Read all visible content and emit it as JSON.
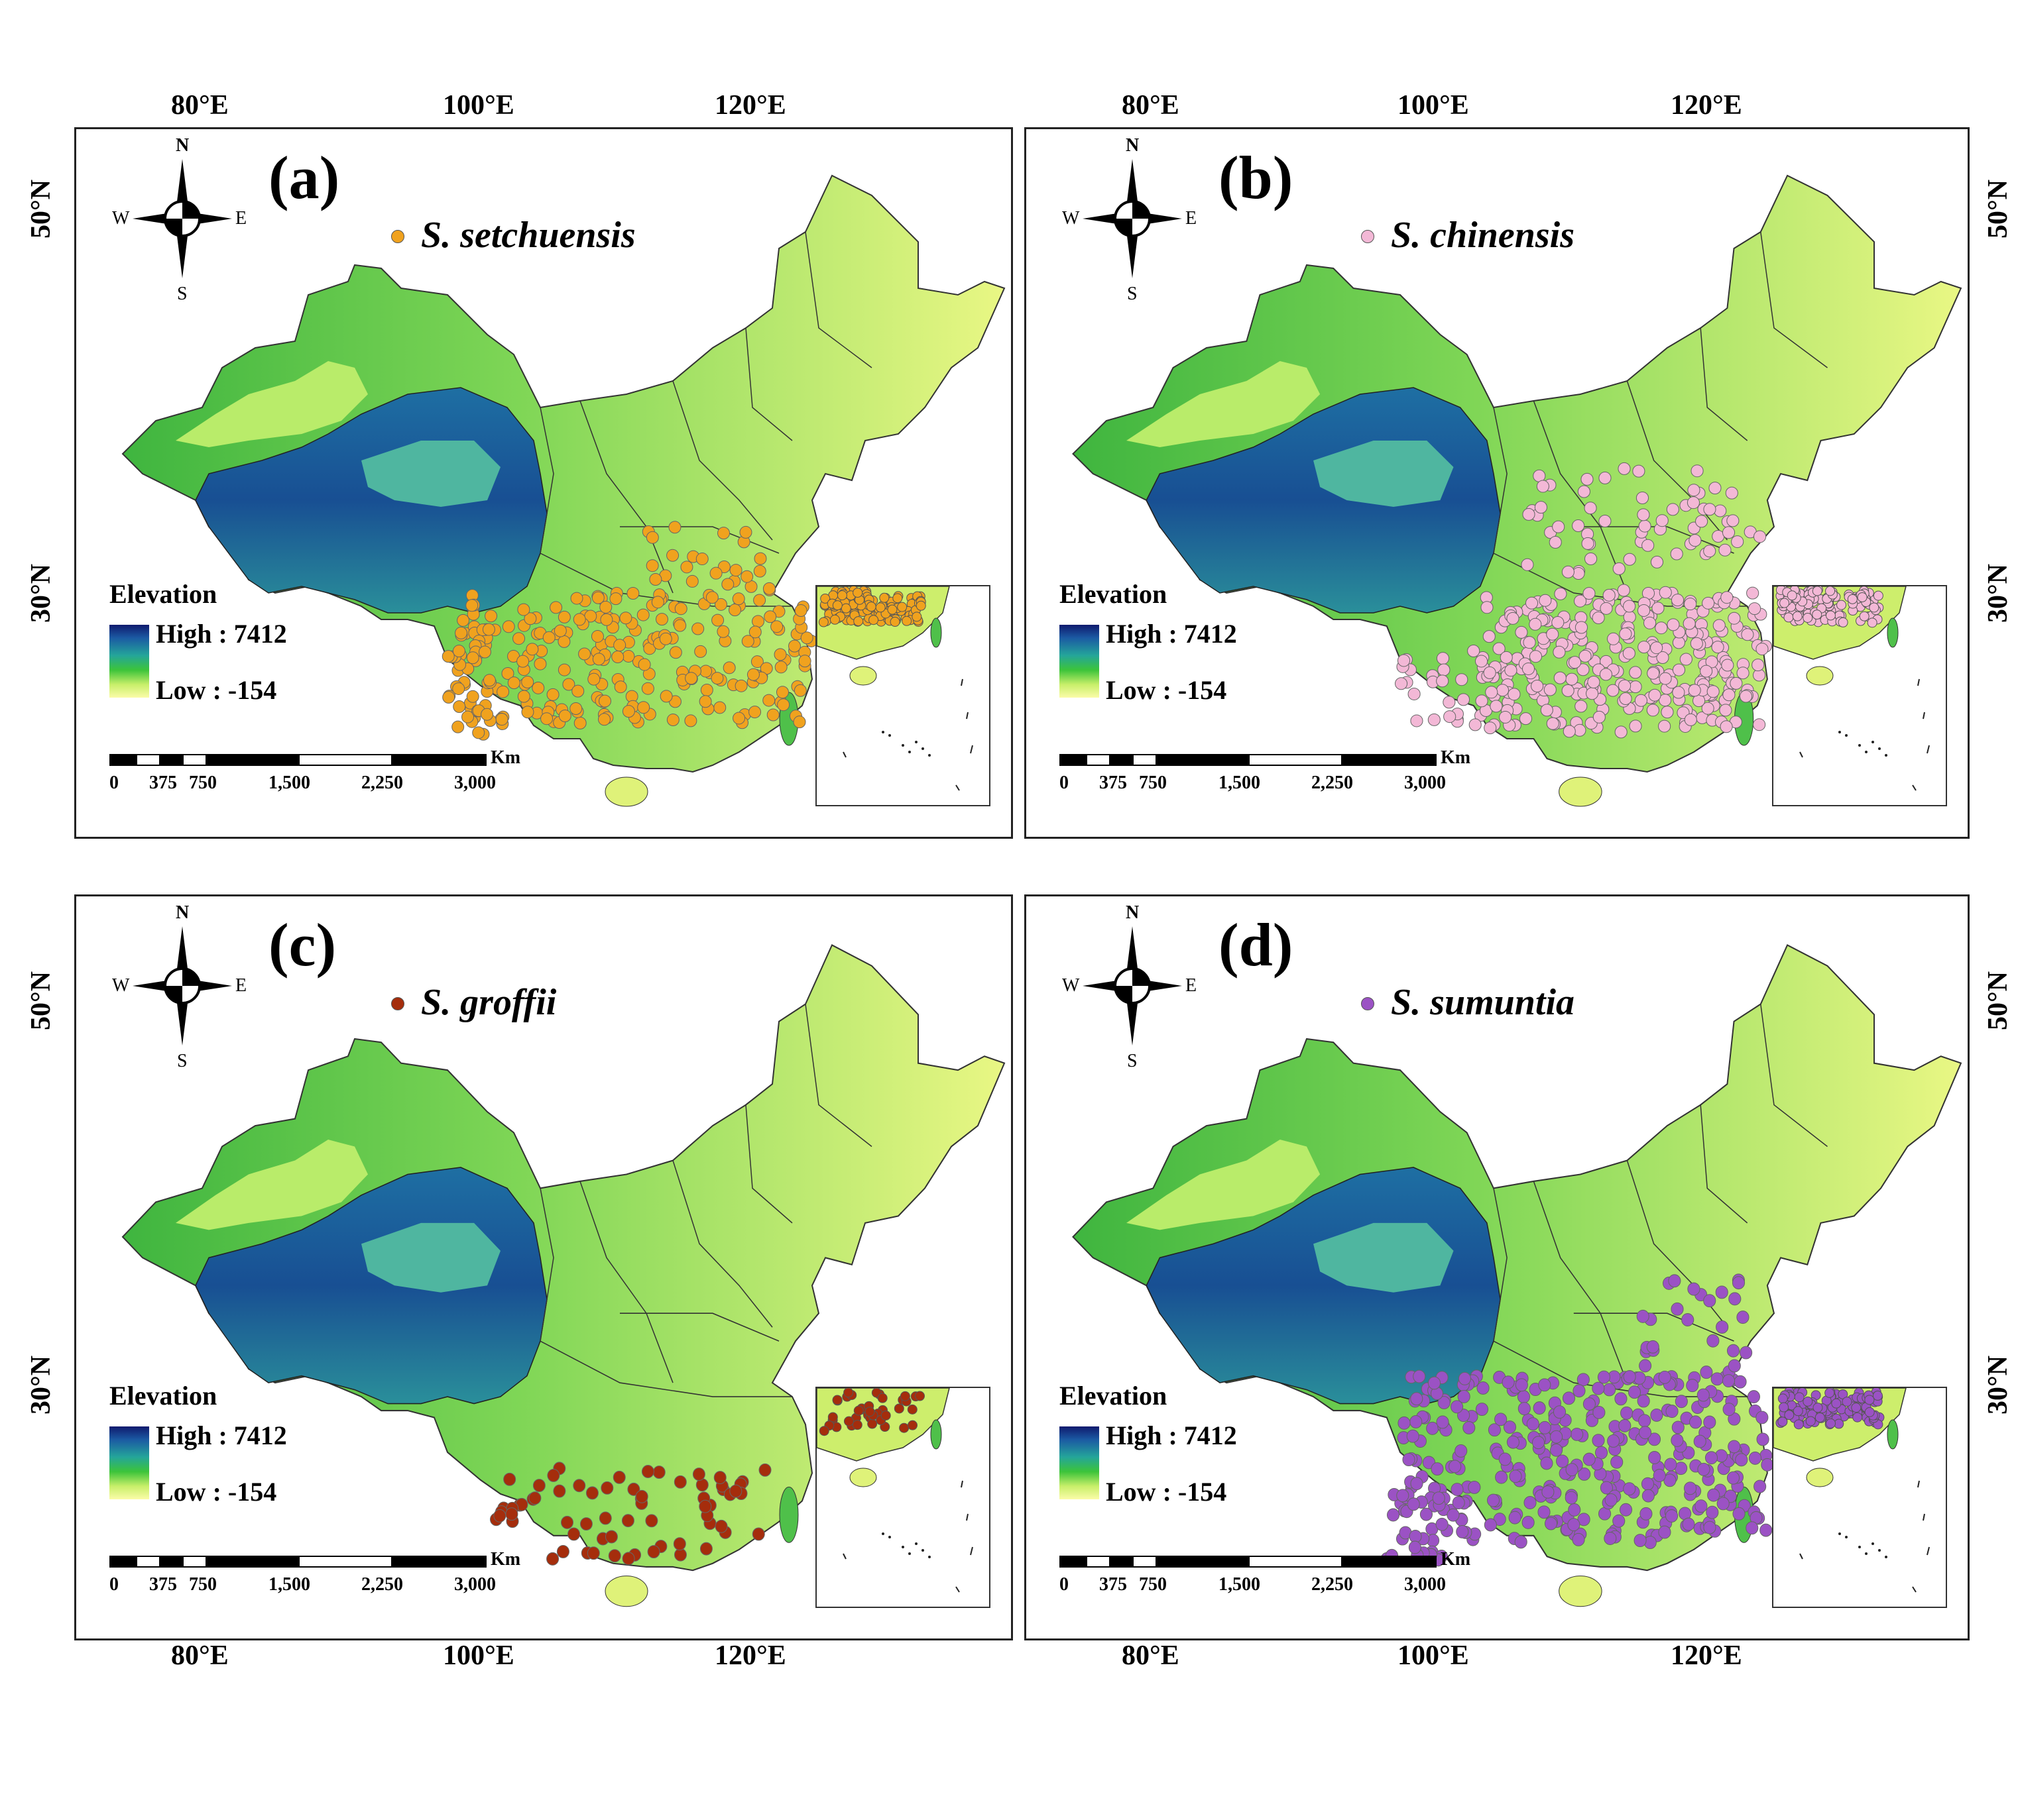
{
  "axes": {
    "top_lon": [
      "80°E",
      "100°E",
      "120°E"
    ],
    "bottom_lon": [
      "80°E",
      "100°E",
      "120°E"
    ],
    "right_lat": [
      "50°N",
      "30°N"
    ],
    "left_lat": [
      "50°N",
      "30°N"
    ]
  },
  "legend": {
    "title": "Elevation",
    "high": "High : 7412",
    "low": "Low : -154"
  },
  "scalebar": {
    "unit": "Km",
    "ticks": [
      "0",
      "375",
      "750",
      "1,500",
      "2,250",
      "3,000"
    ]
  },
  "compass": {
    "n": "N",
    "s": "S",
    "e": "E",
    "w": "W"
  },
  "panels": [
    {
      "label": "(a)",
      "species": "S. setchuensis",
      "color": "#f0a21e"
    },
    {
      "label": "(b)",
      "species": "S. chinensis",
      "color": "#f3b8d6"
    },
    {
      "label": "(c)",
      "species": "S. groffii",
      "color": "#a52d0c"
    },
    {
      "label": "(d)",
      "species": "S. sumuntia",
      "color": "#9b52c4"
    }
  ]
}
